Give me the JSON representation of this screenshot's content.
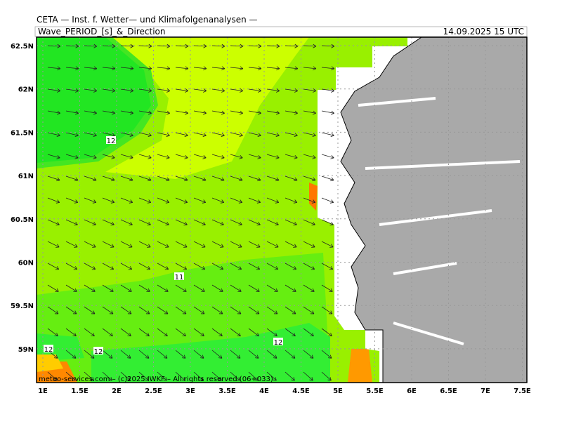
{
  "header": {
    "title": "CETA — Inst. f. Wetter— und Klimafolgenanalysen —",
    "subtitle": "Wave_PERIOD_[s]_&_Direction",
    "valid_time": "14.09.2025 15 UTC"
  },
  "axes": {
    "lat_labels": [
      "62.5N",
      "62N",
      "61.5N",
      "61N",
      "60.5N",
      "60N",
      "59.5N",
      "59N"
    ],
    "lon_labels": [
      "1E",
      "1.5E",
      "2E",
      "2.5E",
      "3E",
      "3.5E",
      "4E",
      "4.5E",
      "5E",
      "5.5E",
      "6E",
      "6.5E",
      "7E",
      "7.5E"
    ]
  },
  "contour_labels": [
    "12",
    "11",
    "12",
    "12",
    "12"
  ],
  "footer": {
    "credit": "meteo-services.com – (c)2025 IWKF – All rights reserved (06+033)"
  }
}
